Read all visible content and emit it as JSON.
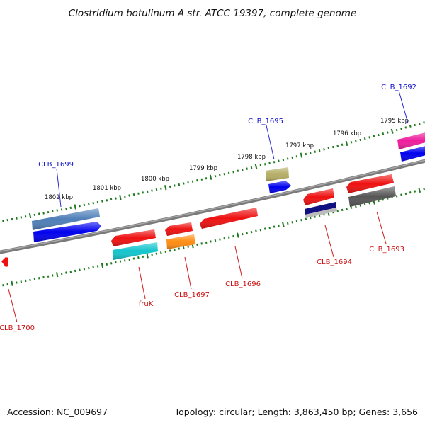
{
  "title": "Clostridium botulinum A str. ATCC 19397, complete genome",
  "footer": {
    "accession": "Accession: NC_009697",
    "stats": "Topology: circular; Length: 3,863,450 bp; Genes: 3,656"
  },
  "colors": {
    "backbone": "#7a7a7a",
    "tick": "#1e7a1e",
    "label_forward": "#1010cc",
    "label_reverse": "#cc1111",
    "callout_forward": "#2a2ad0",
    "callout_reverse": "#d01a1a"
  },
  "scale_labels": [
    "1802 kbp",
    "1801 kbp",
    "1800 kbp",
    "1799 kbp",
    "1798 kbp",
    "1797 kbp",
    "1796 kbp",
    "1795 kbp"
  ],
  "genes_forward": [
    {
      "name": "CLB_1699",
      "colors": [
        "#4e7fb8",
        "#0000ee"
      ]
    },
    {
      "name": "CLB_1695",
      "colors": [
        "#b5ad65",
        "#0000ee"
      ]
    },
    {
      "name": "CLB_1692",
      "colors": [
        "#ee1c9c",
        "#0000ee"
      ]
    }
  ],
  "genes_reverse": [
    {
      "name": "CLB_1700",
      "colors": [
        "#ee1111"
      ]
    },
    {
      "name": "fruK",
      "colors": [
        "#ee1111",
        "#12c4cc"
      ]
    },
    {
      "name": "CLB_1697",
      "colors": [
        "#ee1111",
        "#ff8c10"
      ]
    },
    {
      "name": "CLB_1696",
      "colors": [
        "#ee1111"
      ]
    },
    {
      "name": "CLB_1694",
      "colors": [
        "#ee1111",
        "#101080"
      ]
    },
    {
      "name": "CLB_1693",
      "colors": [
        "#ee1111",
        "#555555"
      ]
    }
  ]
}
